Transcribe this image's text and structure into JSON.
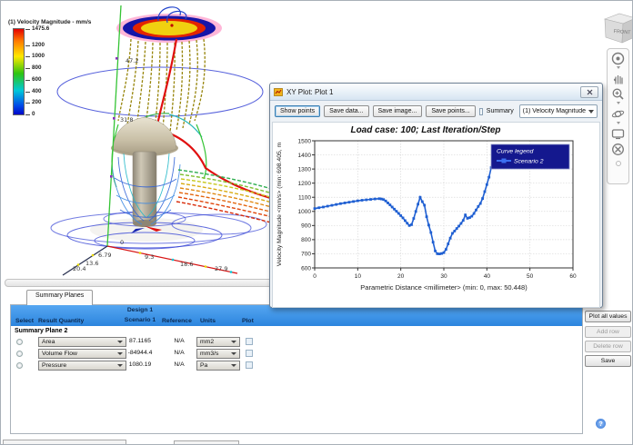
{
  "viewport": {
    "legend": {
      "title": "(1) Velocity Magnitude - mm/s",
      "max": 1475.6,
      "ticks": [
        1475.6,
        1200,
        1000,
        800,
        600,
        400,
        200,
        0
      ],
      "colors_top_to_bottom": [
        "#e40000",
        "#ff7a00",
        "#ffe800",
        "#2fc410",
        "#00c8d8",
        "#0008c8"
      ]
    },
    "measure_labels": [
      "47.2",
      "31.8"
    ],
    "axis_x_labels": [
      "0",
      "9.3",
      "18.6",
      "27.9"
    ],
    "axis_z_labels": [
      "6.79",
      "13.6",
      "20.4"
    ],
    "viewcube_label": "FRONT"
  },
  "navbar": {
    "icons": [
      "steering-wheel-icon",
      "pan-hand-icon",
      "zoom-icon",
      "orbit-icon",
      "look-at-icon",
      "center-icon"
    ]
  },
  "xy_plot": {
    "window_title": "XY Plot: Plot 1",
    "buttons": {
      "show_points": "Show points",
      "save_data": "Save data...",
      "save_image": "Save image...",
      "save_points": "Save points..."
    },
    "summary_checkbox_label": "Summary",
    "quantity_dropdown_value": "(1) Velocity Magnitude"
  },
  "chart_data": {
    "type": "line",
    "title": "Load case: 100; Last Iteration/Step",
    "xlabel": "Parametric Distance <millimeter>  (min: 0, max: 50.448)",
    "ylabel": "Velocity Magnitude <mm/s>  (min: 698.405, m",
    "legend_title": "Curve legend",
    "legend_position": "top-right",
    "grid": true,
    "xlim": [
      0,
      60
    ],
    "ylim": [
      600,
      1500
    ],
    "xticks": [
      0,
      10,
      20,
      30,
      40,
      50,
      60
    ],
    "yticks": [
      600,
      700,
      800,
      900,
      1000,
      1100,
      1200,
      1300,
      1400,
      1500
    ],
    "series": [
      {
        "name": "Scenario 2",
        "color": "#1f5fd2",
        "x": [
          0,
          1,
          2,
          3,
          4,
          5,
          6,
          7,
          8,
          9,
          10,
          11,
          12,
          13,
          14,
          15,
          15.5,
          16,
          16.5,
          17,
          17.5,
          18,
          18.5,
          19,
          19.5,
          20,
          20.5,
          21,
          21.5,
          22,
          22.5,
          23,
          23.5,
          24,
          24.5,
          25,
          25.5,
          26,
          26.5,
          27,
          27.5,
          28,
          28.5,
          29,
          29.5,
          30,
          30.5,
          31,
          31.5,
          32,
          32.5,
          33,
          33.5,
          34,
          34.5,
          35,
          35.5,
          36,
          36.5,
          37,
          37.5,
          38,
          38.5,
          39,
          39.5,
          40,
          40.5,
          41,
          41.5,
          42,
          42.5,
          43,
          43.5,
          44,
          44.5,
          45,
          45.5,
          46,
          46.5,
          47,
          47.5,
          48,
          48.5,
          49,
          49.5,
          50,
          50.448
        ],
        "y": [
          1020,
          1026,
          1031,
          1037,
          1043,
          1049,
          1055,
          1060,
          1065,
          1070,
          1075,
          1079,
          1082,
          1085,
          1088,
          1090,
          1088,
          1084,
          1074,
          1060,
          1046,
          1031,
          1016,
          1001,
          986,
          970,
          954,
          935,
          916,
          900,
          906,
          950,
          1000,
          1051,
          1100,
          1069,
          1044,
          962,
          903,
          851,
          782,
          720,
          700,
          699,
          702,
          708,
          731,
          770,
          811,
          845,
          861,
          879,
          896,
          915,
          936,
          975,
          951,
          956,
          966,
          985,
          1010,
          1035,
          1056,
          1091,
          1140,
          1190,
          1242,
          1310,
          1394,
          1409,
          1415,
          1391,
          1376,
          1362,
          1363,
          1365,
          1362,
          1359,
          1356,
          1352,
          1350,
          1348,
          1345,
          1342,
          1340,
          1338,
          1335
        ]
      }
    ]
  },
  "summary_panel": {
    "tab_label": "Summary Planes",
    "columns": [
      "Select",
      "Result Quantity",
      "Design 1",
      "Scenario 1",
      "Reference",
      "Units",
      "Plot"
    ],
    "group_label": "Summary Plane 2",
    "rows": [
      {
        "quantity": "Area",
        "value": "87.1165",
        "reference": "N/A",
        "unit": "mm2"
      },
      {
        "quantity": "Volume Flow",
        "value": "-84944.4",
        "reference": "N/A",
        "unit": "mm3/s"
      },
      {
        "quantity": "Pressure",
        "value": "1080.19",
        "reference": "N/A",
        "unit": "Pa"
      }
    ],
    "buttons": [
      {
        "label": "Plot all values",
        "enabled": true
      },
      {
        "label": "Add row",
        "enabled": false
      },
      {
        "label": "Delete row",
        "enabled": false
      },
      {
        "label": "Save",
        "enabled": true
      }
    ],
    "help_glyph": "?"
  }
}
